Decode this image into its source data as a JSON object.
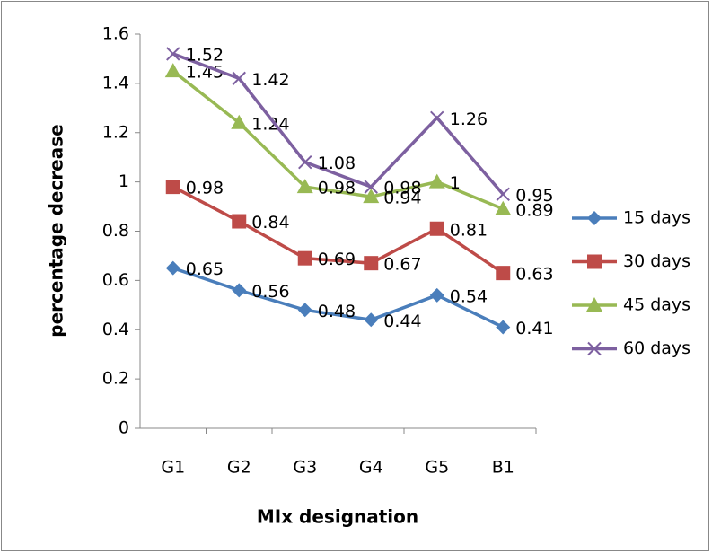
{
  "chart_data": {
    "type": "line",
    "x_label": "MIx designation",
    "y_label": "percentage decrease",
    "categories": [
      "G1",
      "G2",
      "G3",
      "G4",
      "G5",
      "B1"
    ],
    "ylim": [
      0,
      1.6
    ],
    "yticks": [
      0,
      0.2,
      0.4,
      0.6,
      0.8,
      1,
      1.2,
      1.4,
      1.6
    ],
    "legend": "right",
    "series": [
      {
        "name": "15 days",
        "color": "#4a7ebb",
        "marker": "diamond",
        "values": [
          0.65,
          0.56,
          0.48,
          0.44,
          0.54,
          0.41
        ]
      },
      {
        "name": "30 days",
        "color": "#be4b48",
        "marker": "square",
        "values": [
          0.98,
          0.84,
          0.69,
          0.67,
          0.81,
          0.63
        ]
      },
      {
        "name": "45 days",
        "color": "#98b954",
        "marker": "triangle",
        "values": [
          1.45,
          1.24,
          0.98,
          0.94,
          1,
          0.89
        ]
      },
      {
        "name": "60 days",
        "color": "#7d60a0",
        "marker": "x",
        "values": [
          1.52,
          1.42,
          1.08,
          0.98,
          1.26,
          0.95
        ]
      }
    ]
  }
}
